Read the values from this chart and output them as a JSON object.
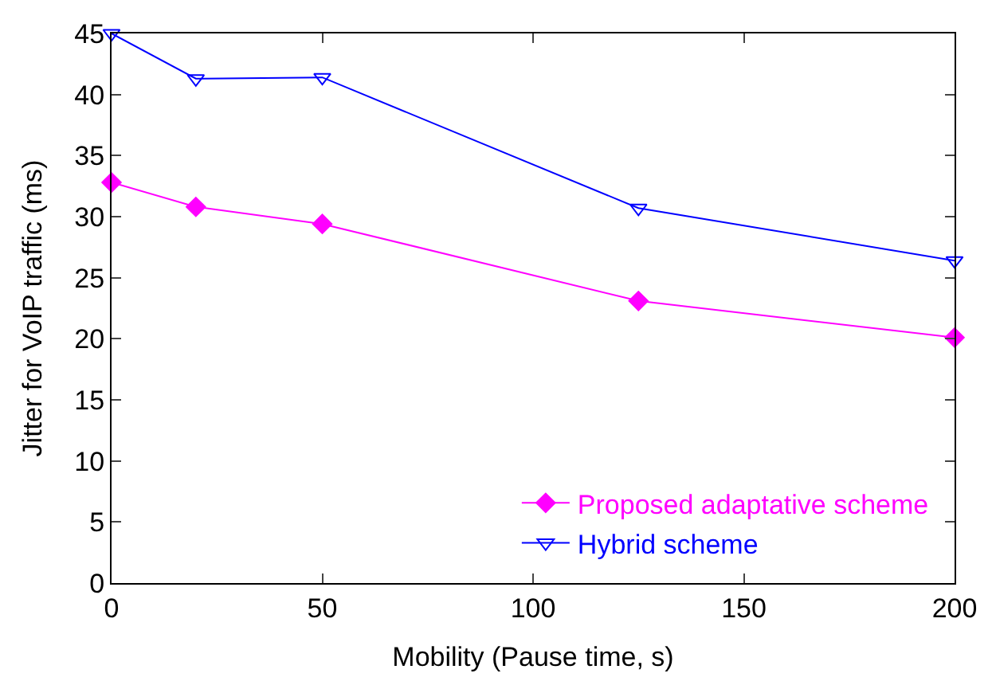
{
  "chart_data": {
    "type": "line",
    "xlabel": "Mobility (Pause time, s)",
    "ylabel": "Jitter for VoIP traffic (ms)",
    "x": [
      0,
      20,
      50,
      125,
      200
    ],
    "series": [
      {
        "name": "Proposed adaptative scheme",
        "color": "#ff00ff",
        "marker": "diamond",
        "values": [
          32.8,
          30.8,
          29.4,
          23.1,
          20.1
        ]
      },
      {
        "name": "Hybrid scheme",
        "color": "#0000ff",
        "marker": "triangle-down-open",
        "values": [
          45,
          41.3,
          41.4,
          30.7,
          26.4
        ]
      }
    ],
    "xlim": [
      0,
      200
    ],
    "xticks": [
      0,
      50,
      100,
      150,
      200
    ],
    "ylim": [
      0,
      45
    ],
    "yticks": [
      0,
      5,
      10,
      15,
      20,
      25,
      30,
      35,
      40,
      45
    ],
    "legend": "bottom right"
  }
}
